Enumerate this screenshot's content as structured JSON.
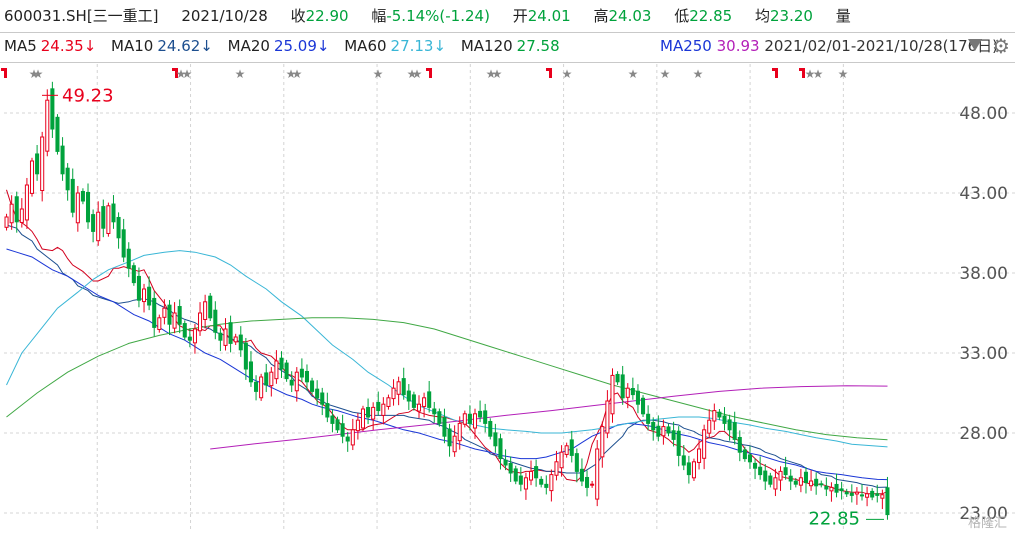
{
  "header": {
    "symbol": "600031.SH[三一重工]",
    "date": "2021/10/28",
    "close_label": "收",
    "close_value": "22.90",
    "change_label": "幅",
    "change_value": "-5.14%(-1.24)",
    "open_label": "开",
    "open_value": "24.01",
    "high_label": "高",
    "high_value": "24.03",
    "low_label": "低",
    "low_value": "22.85",
    "avg_label": "均",
    "avg_value": "23.20",
    "vol_label": "量"
  },
  "ma_legend": {
    "ma5_label": "MA5",
    "ma5_value": "24.35↓",
    "ma10_label": "MA10",
    "ma10_value": "24.62↓",
    "ma20_label": "MA20",
    "ma20_value": "25.09↓",
    "ma60_label": "MA60",
    "ma60_value": "27.13↓",
    "ma120_label": "MA120",
    "ma120_value": "27.58",
    "ma250_label": "MA250",
    "ma250_value": "30.93",
    "date_range": "2021/02/01-2021/10/28(176日)"
  },
  "watermark": "格隆汇",
  "colors": {
    "up": "#e8001c",
    "down": "#00a23c",
    "ma5": "#d2001e",
    "ma10": "#1d4f8f",
    "ma20": "#1a36d6",
    "ma60": "#39b6d6",
    "ma120": "#40a845",
    "ma250": "#b31fb8",
    "grid": "#d4d4d4",
    "axis_text": "#555555"
  },
  "chart_data": {
    "type": "candlestick",
    "x_range": [
      "2021/02/01",
      "2021/10/28"
    ],
    "trading_days": 176,
    "ylim": [
      23,
      50
    ],
    "y_ticks": [
      "48.00",
      "43.00",
      "38.00",
      "33.00",
      "28.00",
      "23.00"
    ],
    "y_tick_values": [
      48,
      43,
      38,
      33,
      28,
      23
    ],
    "annotations": [
      {
        "text": "49.23",
        "value": 49.23,
        "label": "max high"
      },
      {
        "text": "22.85",
        "value": 22.85,
        "label": "min low"
      }
    ],
    "close": [
      41.5,
      42.3,
      41.2,
      42.0,
      43.5,
      45.0,
      44.2,
      46.5,
      48.8,
      47.0,
      45.6,
      44.2,
      43.2,
      41.8,
      43.0,
      42.5,
      41.2,
      40.6,
      41.8,
      40.8,
      42.2,
      41.2,
      40.2,
      39.0,
      38.3,
      37.4,
      36.3,
      37.0,
      36.0,
      34.6,
      35.2,
      35.8,
      34.8,
      35.5,
      34.8,
      34.0,
      33.8,
      34.5,
      35.5,
      36.2,
      35.2,
      34.3,
      33.8,
      34.5,
      33.6,
      34.0,
      33.2,
      32.0,
      31.2,
      30.6,
      31.5,
      31.0,
      31.8,
      32.5,
      32.0,
      31.4,
      31.0,
      31.8,
      31.5,
      31.2,
      30.6,
      30.2,
      29.8,
      29.0,
      28.6,
      28.2,
      27.8,
      27.5,
      28.2,
      28.8,
      29.5,
      29.0,
      29.6,
      29.4,
      29.8,
      30.2,
      30.8,
      31.2,
      30.4,
      30.0,
      29.6,
      29.8,
      30.2,
      29.6,
      29.2,
      28.6,
      27.8,
      27.2,
      27.8,
      28.6,
      29.2,
      28.6,
      29.2,
      29.0,
      28.6,
      27.8,
      27.2,
      26.4,
      26.0,
      25.5,
      25.0,
      24.8,
      25.2,
      25.6,
      25.2,
      24.8,
      24.6,
      25.4,
      26.2,
      26.8,
      27.2,
      26.6,
      25.6,
      25.0,
      24.6,
      24.8,
      27.0,
      28.4,
      30.0,
      31.6,
      31.2,
      30.2,
      30.8,
      30.4,
      29.8,
      29.2,
      28.6,
      28.2,
      27.8,
      28.4,
      28.0,
      27.6,
      26.6,
      26.0,
      25.4,
      26.2,
      27.0,
      28.2,
      28.8,
      29.4,
      29.0,
      28.6,
      28.2,
      27.6,
      26.8,
      26.4,
      26.2,
      25.8,
      25.4,
      25.0,
      24.8,
      25.2,
      25.6,
      25.4,
      25.0,
      24.8,
      25.2,
      24.9,
      25.0,
      24.7,
      24.8,
      24.5,
      24.6,
      24.3,
      24.4,
      24.2,
      24.1,
      24.3,
      24.1,
      24.2,
      24.0,
      24.1,
      24.14,
      22.9
    ],
    "ma_series": [
      {
        "name": "MA5",
        "values": [
          43.2,
          42.2,
          41.4,
          40.9,
          40.6,
          40.1,
          39.5,
          39.4,
          39.6,
          39.4,
          38.9,
          38.5,
          38.1,
          37.8,
          37.5,
          37.5,
          37.8,
          38.3,
          38.3,
          38.4,
          38.2,
          38.1,
          38.2,
          37.6,
          36.9,
          36.1,
          35.5,
          35.1,
          34.7,
          34.4,
          34.4,
          34.5,
          34.4,
          34.7,
          34.7,
          34.2,
          33.9,
          33.7,
          33.7,
          33.8,
          33.3,
          33.0,
          32.8,
          32.5,
          32.2,
          31.7,
          31.6,
          31.2,
          30.8,
          30.4,
          30.0,
          29.6,
          29.2,
          28.8,
          28.4,
          28.2,
          28.2,
          28.2,
          28.4,
          28.5,
          28.6,
          28.8,
          29.0,
          29.2,
          29.3,
          29.5,
          29.3,
          29.2,
          29.1,
          29.0,
          29.0,
          28.9,
          28.8,
          28.6,
          28.3,
          27.9,
          27.5,
          27.1,
          26.6,
          26.1,
          25.8,
          25.6,
          25.5,
          25.6,
          25.6,
          25.7,
          25.6,
          25.6,
          25.6,
          25.5,
          25.1,
          25.0,
          25.3,
          26.1,
          27.3,
          28.6,
          29.7,
          30.4,
          30.5,
          30.0,
          29.6,
          29.0,
          28.6,
          28.2,
          28.0,
          27.8,
          27.6,
          27.3,
          27.1,
          26.8,
          27.0,
          27.4,
          27.6,
          27.8,
          28.1,
          28.1,
          27.8,
          27.5,
          27.0,
          26.7,
          26.4,
          26.1,
          25.8,
          25.6,
          25.3,
          25.2,
          25.1,
          25.0,
          24.9,
          24.8,
          24.8,
          24.7,
          24.6,
          24.5,
          24.4,
          24.3,
          24.3,
          24.3,
          24.2,
          24.2,
          24.2,
          24.35
        ]
      },
      {
        "name": "MA10",
        "values": [
          41.0,
          40.8,
          40.4,
          40.0,
          39.5,
          39.0,
          38.5,
          38.0,
          37.6,
          37.2,
          36.9,
          36.6,
          36.4,
          36.2,
          36.1,
          36.2,
          36.3,
          36.4,
          36.2,
          36.0,
          35.7,
          35.4,
          35.1,
          34.9,
          34.7,
          34.5,
          34.3,
          34.1,
          33.9,
          33.7,
          33.4,
          33.1,
          32.7,
          32.3,
          31.9,
          31.5,
          31.1,
          30.7,
          30.3,
          30.0,
          29.8,
          29.6,
          29.4,
          29.3,
          29.2,
          29.1,
          29.1,
          29.1,
          29.1,
          29.1,
          29.0,
          28.9,
          28.8,
          28.6,
          28.4,
          28.2,
          27.9,
          27.6,
          27.3,
          27.0,
          26.7,
          26.5,
          26.3,
          26.1,
          25.9,
          25.8,
          25.7,
          25.6,
          25.6,
          25.5,
          25.5,
          25.5,
          25.7,
          26.1,
          26.6,
          27.2,
          27.8,
          28.3,
          28.7,
          28.8,
          28.8,
          28.7,
          28.6,
          28.5,
          28.3,
          28.1,
          27.9,
          27.7,
          27.6,
          27.5,
          27.4,
          27.3,
          27.2,
          27.0,
          26.8,
          26.6,
          26.4,
          26.2,
          26.0,
          25.8,
          25.6,
          25.4,
          25.3,
          25.1,
          25.0,
          24.9,
          24.8,
          24.7,
          24.6,
          24.62
        ]
      },
      {
        "name": "MA20",
        "values": [
          39.5,
          39.3,
          39.0,
          38.6,
          38.2,
          37.8,
          37.4,
          37.0,
          36.6,
          36.2,
          35.8,
          35.4,
          35.0,
          34.6,
          34.2,
          33.8,
          33.4,
          33.0,
          32.6,
          32.2,
          31.8,
          31.4,
          31.0,
          30.7,
          30.4,
          30.1,
          29.8,
          29.6,
          29.4,
          29.2,
          29.0,
          28.8,
          28.6,
          28.4,
          28.2,
          28.0,
          27.8,
          27.6,
          27.4,
          27.2,
          27.0,
          26.8,
          26.6,
          26.5,
          26.4,
          26.4,
          26.5,
          26.7,
          27.0,
          27.4,
          27.8,
          28.2,
          28.5,
          28.6,
          28.5,
          28.4,
          28.2,
          28.0,
          27.8,
          27.6,
          27.4,
          27.2,
          27.0,
          26.8,
          26.6,
          26.4,
          26.2,
          26.0,
          25.8,
          25.6,
          25.5,
          25.4,
          25.3,
          25.2,
          25.1,
          25.09
        ]
      },
      {
        "name": "MA60",
        "values": [
          31.0,
          33.0,
          34.6,
          35.8,
          36.8,
          37.6,
          38.2,
          38.7,
          39.1,
          39.3,
          39.4,
          39.3,
          39.0,
          38.5,
          37.8,
          37.0,
          36.2,
          35.3,
          34.4,
          33.5,
          32.6,
          31.8,
          31.0,
          30.3,
          29.7,
          29.2,
          28.8,
          28.5,
          28.3,
          28.2,
          28.1,
          28.0,
          28.0,
          28.1,
          28.2,
          28.4,
          28.6,
          28.8,
          28.9,
          29.0,
          29.0,
          28.9,
          28.7,
          28.5,
          28.3,
          28.1,
          27.9,
          27.7,
          27.5,
          27.3,
          27.2,
          27.13
        ]
      },
      {
        "name": "MA120",
        "values": [
          29.0,
          30.5,
          31.8,
          32.8,
          33.6,
          34.1,
          34.5,
          34.8,
          35.0,
          35.1,
          35.2,
          35.2,
          35.1,
          34.9,
          34.5,
          34.0,
          33.4,
          32.8,
          32.2,
          31.6,
          31.0,
          30.5,
          30.0,
          29.5,
          29.0,
          28.6,
          28.2,
          27.9,
          27.7,
          27.58
        ]
      },
      {
        "name": "MA250",
        "values": [
          27.0,
          27.3,
          27.6,
          27.9,
          28.2,
          28.5,
          28.8,
          29.1,
          29.4,
          29.7,
          30.0,
          30.3,
          30.6,
          30.8,
          30.9,
          30.95,
          30.93
        ]
      }
    ]
  }
}
